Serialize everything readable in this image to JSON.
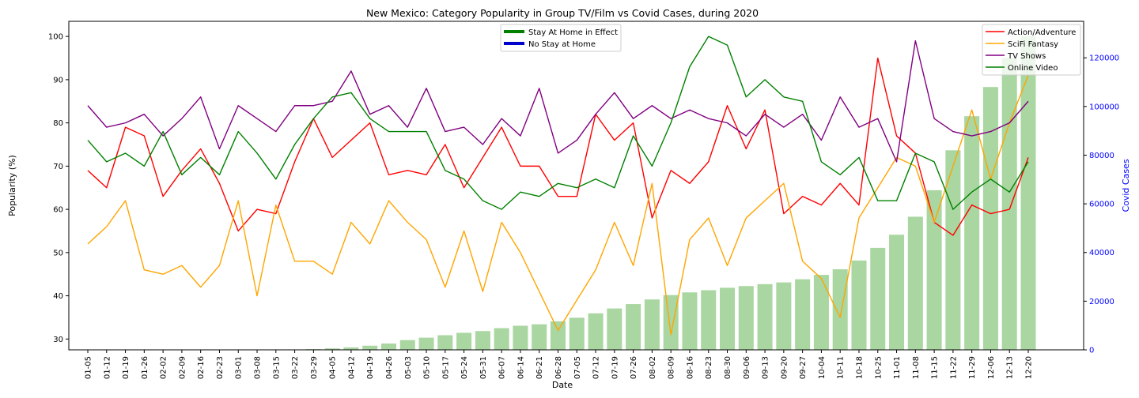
{
  "chart_data": {
    "type": "line",
    "title": "New Mexico: Category Popularity in Group TV/Film vs Covid Cases, during 2020",
    "xlabel": "Date",
    "ylabel": "Popularity (%)",
    "y2label": "Covid Cases",
    "ylim": [
      27.5,
      103.5
    ],
    "y2lim": [
      0,
      135000
    ],
    "yticks": [
      30,
      40,
      50,
      60,
      70,
      80,
      90,
      100
    ],
    "y2ticks": [
      0,
      20000,
      40000,
      60000,
      80000,
      100000,
      120000
    ],
    "categories": [
      "01-05",
      "01-12",
      "01-19",
      "01-26",
      "02-02",
      "02-09",
      "02-16",
      "02-23",
      "03-01",
      "03-08",
      "03-15",
      "03-22",
      "03-29",
      "04-05",
      "04-12",
      "04-19",
      "04-26",
      "05-03",
      "05-10",
      "05-17",
      "05-24",
      "05-31",
      "06-07",
      "06-14",
      "06-21",
      "06-28",
      "07-05",
      "07-12",
      "07-19",
      "07-26",
      "08-02",
      "08-09",
      "08-16",
      "08-23",
      "08-30",
      "09-06",
      "09-13",
      "09-20",
      "09-27",
      "10-04",
      "10-11",
      "10-18",
      "10-25",
      "11-01",
      "11-08",
      "11-15",
      "11-22",
      "11-29",
      "12-06",
      "12-13",
      "12-20"
    ],
    "series": [
      {
        "name": "Action/Adventure",
        "color": "#ff0000",
        "values": [
          69,
          65,
          79,
          77,
          63,
          69,
          74,
          66,
          55,
          60,
          59,
          71,
          81,
          72,
          76,
          80,
          68,
          69,
          68,
          75,
          65,
          72,
          79,
          70,
          70,
          63,
          63,
          82,
          76,
          80,
          58,
          69,
          66,
          71,
          84,
          74,
          83,
          59,
          63,
          61,
          66,
          61,
          95,
          77,
          73,
          57,
          54,
          61,
          59,
          60,
          72
        ]
      },
      {
        "name": "SciFi Fantasy",
        "color": "#ffa500",
        "values": [
          52,
          56,
          62,
          46,
          45,
          47,
          42,
          47,
          62,
          40,
          61,
          48,
          48,
          45,
          57,
          52,
          62,
          57,
          53,
          42,
          55,
          41,
          57,
          50,
          41,
          32,
          39,
          46,
          57,
          47,
          66,
          31,
          53,
          58,
          47,
          58,
          62,
          66,
          48,
          44,
          35,
          58,
          65,
          72,
          70,
          57,
          70,
          83,
          67,
          80,
          91
        ]
      },
      {
        "name": "TV Shows",
        "color": "#800080",
        "values": [
          84,
          79,
          80,
          82,
          77,
          81,
          86,
          74,
          84,
          81,
          78,
          84,
          84,
          85,
          92,
          82,
          84,
          79,
          88,
          78,
          79,
          75,
          81,
          77,
          88,
          73,
          76,
          82,
          87,
          81,
          84,
          81,
          83,
          81,
          80,
          77,
          82,
          79,
          82,
          76,
          86,
          79,
          81,
          71,
          99,
          81,
          78,
          77,
          78,
          80,
          85
        ]
      },
      {
        "name": "Online Video",
        "color": "#008000",
        "values": [
          76,
          71,
          73,
          70,
          78,
          68,
          72,
          68,
          78,
          73,
          67,
          75,
          81,
          86,
          87,
          81,
          78,
          78,
          78,
          69,
          67,
          62,
          60,
          64,
          63,
          66,
          65,
          67,
          65,
          77,
          70,
          80,
          93,
          100,
          98,
          86,
          90,
          86,
          85,
          71,
          68,
          72,
          62,
          62,
          73,
          71,
          60,
          64,
          67,
          64,
          71
        ]
      }
    ],
    "bars": {
      "name": "Covid Cases",
      "color": "#a9d6a1",
      "values": [
        0,
        0,
        0,
        0,
        0,
        0,
        0,
        0,
        0,
        0,
        0,
        0,
        300,
        600,
        1000,
        1700,
        2600,
        4000,
        5000,
        6000,
        7000,
        7700,
        8900,
        9900,
        10500,
        11700,
        13200,
        15000,
        17000,
        18800,
        20700,
        22500,
        23600,
        24500,
        25500,
        26200,
        27000,
        27700,
        29000,
        30800,
        33100,
        36700,
        41900,
        47300,
        54700,
        65600,
        82000,
        96000,
        108000,
        120000,
        129000
      ]
    },
    "legend_right": {
      "position": "top-right",
      "items": [
        "Action/Adventure",
        "SciFi Fantasy",
        "TV Shows",
        "Online Video"
      ]
    },
    "legend_center": {
      "position": "upper-center",
      "items": [
        {
          "label": "Stay At Home in Effect",
          "color": "#008000"
        },
        {
          "label": "No Stay at Home",
          "color": "#0000cd"
        }
      ]
    },
    "grid": false
  }
}
